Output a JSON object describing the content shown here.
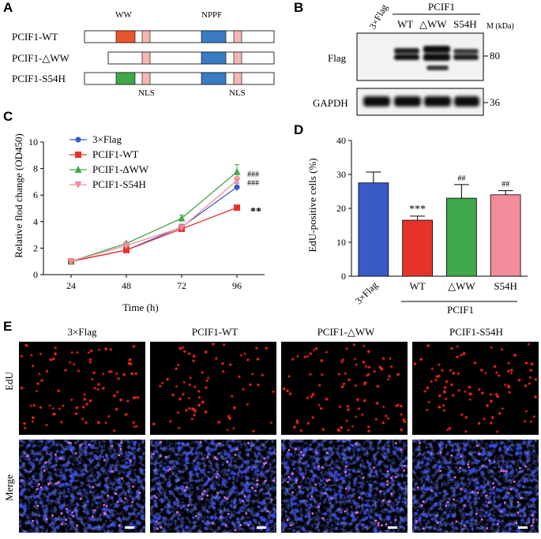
{
  "panels": {
    "A": {
      "label": "A",
      "constructs": [
        {
          "name": "PCIF1-WT",
          "variant": "wt"
        },
        {
          "name": "PCIF1-△WW",
          "variant": "dww"
        },
        {
          "name": "PCIF1-S54H",
          "variant": "s54h"
        }
      ],
      "domain_ww": "WW",
      "domain_nppf": "NPPF",
      "nls_label_1": "NLS",
      "nls_label_2": "NLS",
      "colors": {
        "ww_wt": "#e8552b",
        "ww_s54h": "#3fa84a",
        "nppf": "#3a7cc4",
        "nls": "#f4b6b6"
      }
    },
    "B": {
      "label": "B",
      "lane_3xflag": "3×Flag",
      "group": "PCIF1",
      "lanes": [
        "WT",
        "△WW",
        "S54H"
      ],
      "mw_header": "M (kDa)",
      "row_flag": "Flag",
      "row_gapdh": "GAPDH",
      "mw_80": "80",
      "mw_36": "36"
    },
    "C": {
      "label": "C",
      "significance_wt": "**",
      "significance_dww": "###",
      "significance_s54h": "###"
    },
    "D": {
      "label": "D",
      "group": "PCIF1",
      "significance": [
        "",
        "***",
        "##",
        "##"
      ]
    },
    "E": {
      "label": "E",
      "columns": [
        "3×Flag",
        "PCIF1-WT",
        "PCIF1-△WW",
        "PCIF1-S54H"
      ],
      "rows": [
        "EdU",
        "Merge"
      ]
    }
  },
  "chart_data": [
    {
      "id": "C",
      "type": "line",
      "xlabel": "Time (h)",
      "ylabel": "Relative flod change (OD450)",
      "x": [
        24,
        48,
        72,
        96
      ],
      "xlim": [
        12,
        108
      ],
      "ylim": [
        0,
        10
      ],
      "yticks": [
        0,
        2,
        4,
        6,
        8,
        10
      ],
      "series": [
        {
          "name": "3×Flag",
          "values": [
            1.0,
            1.85,
            3.6,
            6.6
          ],
          "errors": [
            0.05,
            0.1,
            0.2,
            0.3
          ],
          "color": "#3a5bc7",
          "marker": "circle"
        },
        {
          "name": "PCIF1-WT",
          "values": [
            1.0,
            1.85,
            3.45,
            5.05
          ],
          "errors": [
            0.05,
            0.1,
            0.15,
            0.1
          ],
          "color": "#e6332a",
          "marker": "square"
        },
        {
          "name": "PCIF1-ΔWW",
          "values": [
            1.0,
            2.35,
            4.25,
            7.75
          ],
          "errors": [
            0.05,
            0.1,
            0.25,
            0.55
          ],
          "color": "#3fa84a",
          "marker": "triangle-up"
        },
        {
          "name": "PCIF1-S54H",
          "values": [
            1.0,
            2.2,
            3.55,
            7.1
          ],
          "errors": [
            0.05,
            0.1,
            0.2,
            0.3
          ],
          "color": "#f28b9a",
          "marker": "triangle-down"
        }
      ],
      "legend": "top-left"
    },
    {
      "id": "D",
      "type": "bar",
      "ylabel": "EdU-positive cells (%)",
      "categories": [
        "3×Flag",
        "WT",
        "△WW",
        "S54H"
      ],
      "values": [
        27.5,
        16.5,
        23,
        24
      ],
      "errors": [
        3.2,
        1.2,
        4,
        1.2
      ],
      "colors": [
        "#3a5bc7",
        "#e6332a",
        "#3fa84a",
        "#f28b9a"
      ],
      "ylim": [
        0,
        40
      ],
      "yticks": [
        0,
        10,
        20,
        30,
        40
      ]
    }
  ]
}
